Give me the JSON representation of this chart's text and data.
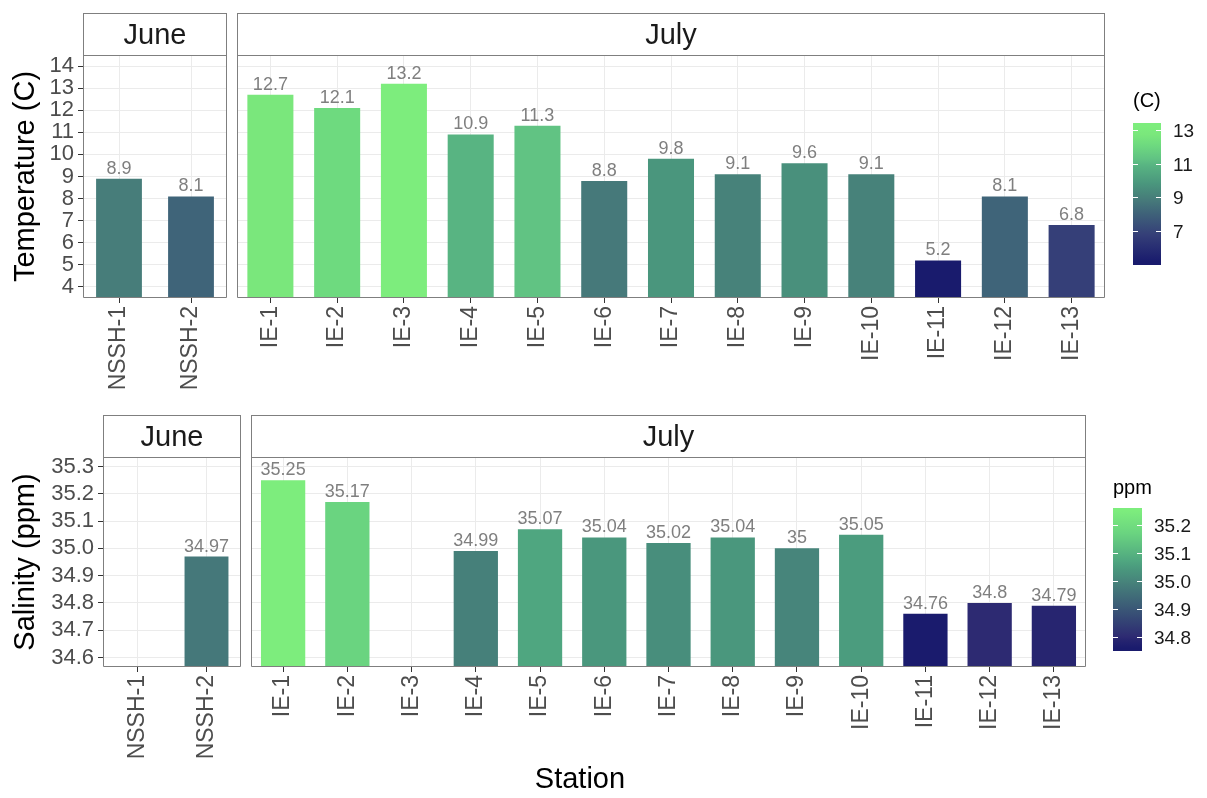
{
  "chart_data": [
    {
      "type": "bar",
      "title": "June",
      "ylabel": "Temperature (C)",
      "categories": [
        "NSSH-1",
        "NSSH-2"
      ],
      "values": [
        8.9,
        8.1
      ],
      "colors": [
        "#477D7A",
        "#3F6479"
      ],
      "ylim": [
        3.5,
        14.5
      ],
      "yticks": [
        4,
        5,
        6,
        7,
        8,
        9,
        10,
        11,
        12,
        13,
        14
      ],
      "grid": true,
      "data_labels": true
    },
    {
      "type": "bar",
      "title": "July",
      "categories": [
        "IE-1",
        "IE-2",
        "IE-3",
        "IE-4",
        "IE-5",
        "IE-6",
        "IE-7",
        "IE-8",
        "IE-9",
        "IE-10",
        "IE-11",
        "IE-12",
        "IE-13"
      ],
      "values": [
        12.7,
        12.1,
        13.2,
        10.9,
        11.3,
        8.8,
        9.8,
        9.1,
        9.6,
        9.1,
        5.2,
        8.1,
        6.8
      ],
      "colors": [
        "#7AE77C",
        "#6EDA7F",
        "#7DED7D",
        "#58B482",
        "#61C383",
        "#46797A",
        "#4A967D",
        "#47827A",
        "#49907C",
        "#47827A",
        "#191B6D",
        "#3F6479",
        "#353F78"
      ],
      "ylim": [
        3.5,
        14.5
      ],
      "yticks": [
        4,
        5,
        6,
        7,
        8,
        9,
        10,
        11,
        12,
        13,
        14
      ],
      "tick_labels": "x",
      "grid": true,
      "data_labels": true,
      "clabel": "(C)",
      "clim": [
        5.0,
        13.4
      ],
      "cticks": [
        7,
        9,
        11,
        13
      ]
    },
    {
      "type": "bar",
      "title": "June",
      "ylabel": "Salinity (ppm)",
      "categories": [
        "NSSH-1",
        "NSSH-2"
      ],
      "values": [
        null,
        34.97
      ],
      "colors": [
        null,
        "#45787A"
      ],
      "ylim": [
        34.565,
        35.335
      ],
      "yticks": [
        34.6,
        34.7,
        34.8,
        34.9,
        {
          "value": 35,
          "label": "35.0"
        },
        35.1,
        35.2,
        35.3
      ],
      "grid": true,
      "data_labels": true
    },
    {
      "type": "bar",
      "title": "July",
      "xlabel": "Station",
      "categories": [
        "IE-1",
        "IE-2",
        "IE-3",
        "IE-4",
        "IE-5",
        "IE-6",
        "IE-7",
        "IE-8",
        "IE-9",
        "IE-10",
        "IE-11",
        "IE-12",
        "IE-13"
      ],
      "values": [
        35.25,
        35.17,
        null,
        34.99,
        35.07,
        35.04,
        35.02,
        35.04,
        35,
        35.05,
        34.76,
        34.8,
        34.79
      ],
      "colors": [
        "#7DED7D",
        "#6AD480",
        null,
        "#46807A",
        "#4FA680",
        "#4A977D",
        "#488E7C",
        "#4A977D",
        "#47857B",
        "#4B9C7E",
        "#1A1B6D",
        "#2D2A72",
        "#272570"
      ],
      "ylim": [
        34.565,
        35.335
      ],
      "yticks": [
        34.6,
        34.7,
        34.8,
        34.9,
        35,
        35.1,
        35.2,
        35.3
      ],
      "tick_labels": "x",
      "grid": true,
      "data_labels": true,
      "clabel": "ppm",
      "clim": [
        34.75,
        35.26
      ],
      "cticks": [
        34.8,
        34.9,
        {
          "value": 35,
          "label": "35.0"
        },
        35.1,
        35.2
      ]
    }
  ]
}
